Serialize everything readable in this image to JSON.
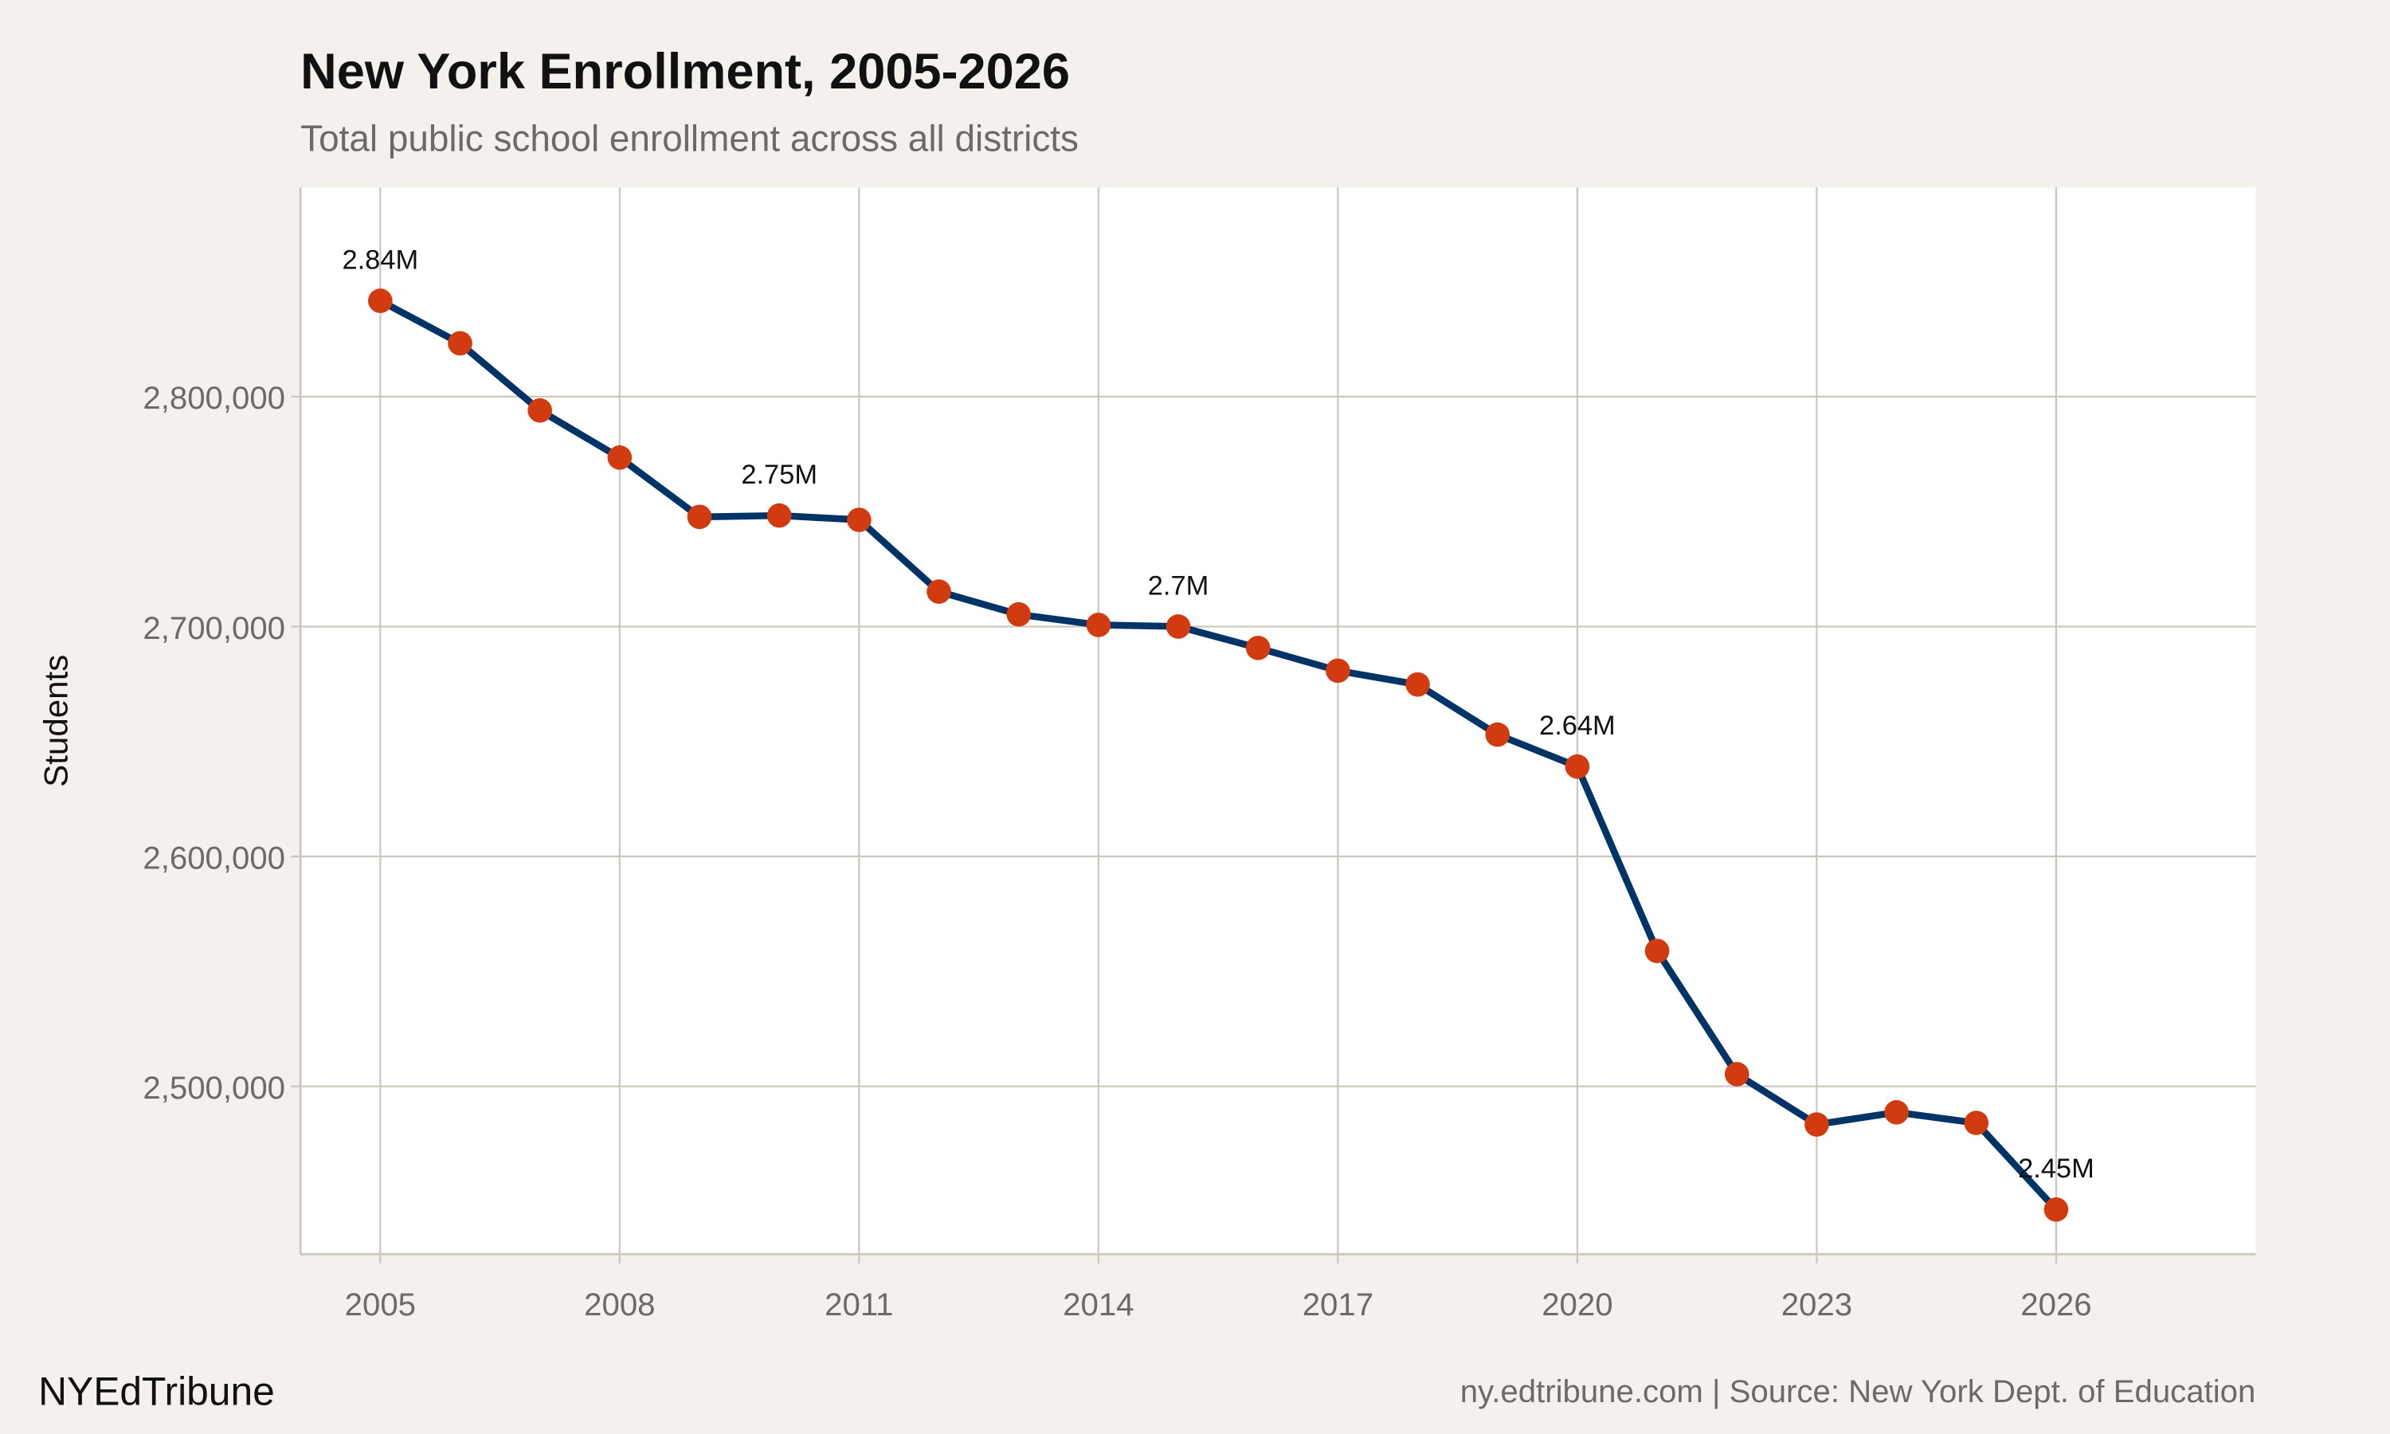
{
  "chart_data": {
    "type": "line",
    "title": "New York Enrollment, 2005-2026",
    "subtitle": "Total public school enrollment across all districts",
    "xlabel": "",
    "ylabel": "Students",
    "x": [
      2005,
      2006,
      2007,
      2008,
      2009,
      2010,
      2011,
      2012,
      2013,
      2014,
      2015,
      2016,
      2017,
      2018,
      2019,
      2020,
      2021,
      2022,
      2023,
      2024,
      2025,
      2026
    ],
    "values": [
      2841700,
      2823200,
      2794000,
      2773500,
      2747700,
      2748300,
      2746400,
      2715200,
      2705300,
      2700700,
      2700000,
      2690700,
      2680800,
      2674800,
      2653000,
      2639100,
      2558900,
      2505300,
      2483400,
      2488700,
      2484100,
      2446400
    ],
    "xlim": [
      2004,
      2028.5
    ],
    "ylim": [
      2427000,
      2891000
    ],
    "x_ticks": [
      "2005",
      "2008",
      "2011",
      "2014",
      "2017",
      "2020",
      "2023",
      "2026"
    ],
    "y_ticks": [
      2500000,
      2600000,
      2700000,
      2800000
    ],
    "y_tick_labels": [
      "2,500,000",
      "2,600,000",
      "2,700,000",
      "2,800,000"
    ],
    "annotations": [
      {
        "x": 2005,
        "label": "2.84M"
      },
      {
        "x": 2010,
        "label": "2.75M"
      },
      {
        "x": 2015,
        "label": "2.7M"
      },
      {
        "x": 2020,
        "label": "2.64M"
      },
      {
        "x": 2026,
        "label": "2.45M"
      }
    ],
    "grid": true,
    "legend": "none",
    "colors": {
      "line": "#003366",
      "points": "#d13b0f",
      "background": "#f4f1ec",
      "panel": "#ffffff",
      "grid": "#cdc8bf"
    }
  },
  "footer": {
    "brand": "NYEdTribune",
    "source": "ny.edtribune.com | Source: New York Dept. of Education"
  }
}
